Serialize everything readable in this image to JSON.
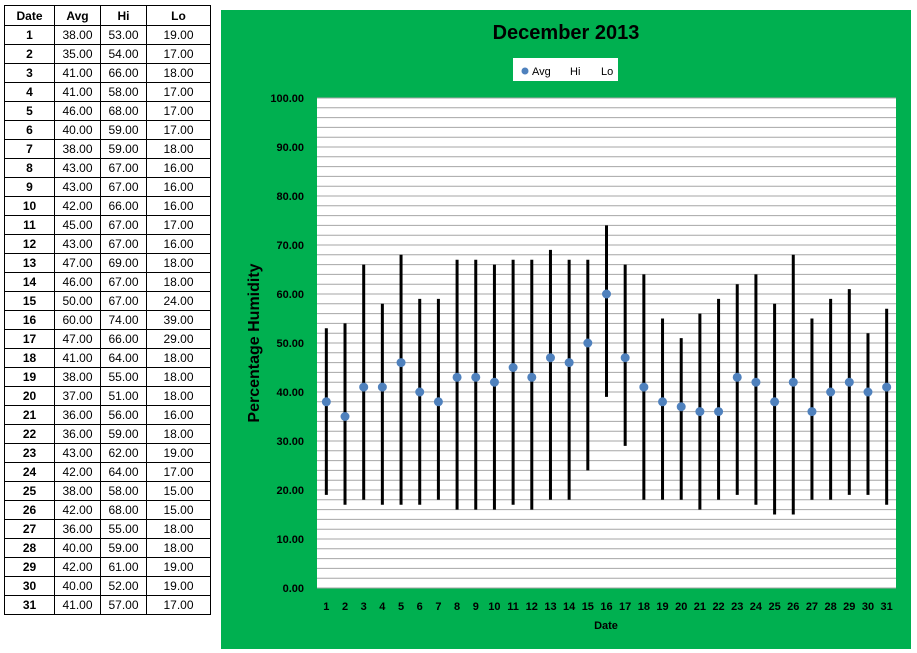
{
  "table": {
    "headers": [
      "Date",
      "Avg",
      "Hi",
      "Lo"
    ],
    "rows": [
      [
        "1",
        "38.00",
        "53.00",
        "19.00"
      ],
      [
        "2",
        "35.00",
        "54.00",
        "17.00"
      ],
      [
        "3",
        "41.00",
        "66.00",
        "18.00"
      ],
      [
        "4",
        "41.00",
        "58.00",
        "17.00"
      ],
      [
        "5",
        "46.00",
        "68.00",
        "17.00"
      ],
      [
        "6",
        "40.00",
        "59.00",
        "17.00"
      ],
      [
        "7",
        "38.00",
        "59.00",
        "18.00"
      ],
      [
        "8",
        "43.00",
        "67.00",
        "16.00"
      ],
      [
        "9",
        "43.00",
        "67.00",
        "16.00"
      ],
      [
        "10",
        "42.00",
        "66.00",
        "16.00"
      ],
      [
        "11",
        "45.00",
        "67.00",
        "17.00"
      ],
      [
        "12",
        "43.00",
        "67.00",
        "16.00"
      ],
      [
        "13",
        "47.00",
        "69.00",
        "18.00"
      ],
      [
        "14",
        "46.00",
        "67.00",
        "18.00"
      ],
      [
        "15",
        "50.00",
        "67.00",
        "24.00"
      ],
      [
        "16",
        "60.00",
        "74.00",
        "39.00"
      ],
      [
        "17",
        "47.00",
        "66.00",
        "29.00"
      ],
      [
        "18",
        "41.00",
        "64.00",
        "18.00"
      ],
      [
        "19",
        "38.00",
        "55.00",
        "18.00"
      ],
      [
        "20",
        "37.00",
        "51.00",
        "18.00"
      ],
      [
        "21",
        "36.00",
        "56.00",
        "16.00"
      ],
      [
        "22",
        "36.00",
        "59.00",
        "18.00"
      ],
      [
        "23",
        "43.00",
        "62.00",
        "19.00"
      ],
      [
        "24",
        "42.00",
        "64.00",
        "17.00"
      ],
      [
        "25",
        "38.00",
        "58.00",
        "15.00"
      ],
      [
        "26",
        "42.00",
        "68.00",
        "15.00"
      ],
      [
        "27",
        "36.00",
        "55.00",
        "18.00"
      ],
      [
        "28",
        "40.00",
        "59.00",
        "18.00"
      ],
      [
        "29",
        "42.00",
        "61.00",
        "19.00"
      ],
      [
        "30",
        "40.00",
        "52.00",
        "19.00"
      ],
      [
        "31",
        "41.00",
        "57.00",
        "17.00"
      ]
    ]
  },
  "chart_data": {
    "type": "scatter",
    "title": "December 2013",
    "xlabel": "Date",
    "ylabel": "Percentage Humidity",
    "ylim": [
      0,
      100
    ],
    "yticks": [
      "0.00",
      "10.00",
      "20.00",
      "30.00",
      "40.00",
      "50.00",
      "60.00",
      "70.00",
      "80.00",
      "90.00",
      "100.00"
    ],
    "grid": true,
    "legend": {
      "position": "top",
      "entries": [
        "Avg",
        "Hi",
        "Lo"
      ]
    },
    "categories": [
      "1",
      "2",
      "3",
      "4",
      "5",
      "6",
      "7",
      "8",
      "9",
      "10",
      "11",
      "12",
      "13",
      "14",
      "15",
      "16",
      "17",
      "18",
      "19",
      "20",
      "21",
      "22",
      "23",
      "24",
      "25",
      "26",
      "27",
      "28",
      "29",
      "30",
      "31"
    ],
    "series": [
      {
        "name": "Avg",
        "values": [
          38,
          35,
          41,
          41,
          46,
          40,
          38,
          43,
          43,
          42,
          45,
          43,
          47,
          46,
          50,
          60,
          47,
          41,
          38,
          37,
          36,
          36,
          43,
          42,
          38,
          42,
          36,
          40,
          42,
          40,
          41
        ]
      },
      {
        "name": "Hi",
        "values": [
          53,
          54,
          66,
          58,
          68,
          59,
          59,
          67,
          67,
          66,
          67,
          67,
          69,
          67,
          67,
          74,
          66,
          64,
          55,
          51,
          56,
          59,
          62,
          64,
          58,
          68,
          55,
          59,
          61,
          52,
          57
        ]
      },
      {
        "name": "Lo",
        "values": [
          19,
          17,
          18,
          17,
          17,
          17,
          18,
          16,
          16,
          16,
          17,
          16,
          18,
          18,
          24,
          39,
          29,
          18,
          18,
          18,
          16,
          18,
          19,
          17,
          15,
          15,
          18,
          18,
          19,
          19,
          17
        ]
      }
    ],
    "colors": {
      "panel": "#00b050",
      "plot": "#ffffff",
      "avg_marker": "#4f81bd",
      "range_bar": "#000000",
      "grid": "#a6a6a6"
    }
  }
}
